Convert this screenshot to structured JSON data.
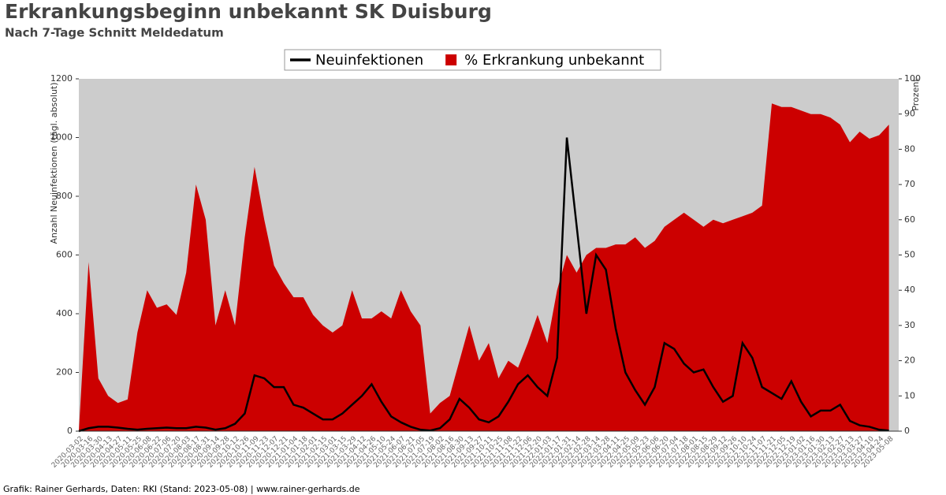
{
  "chart_data": {
    "type": "line_area",
    "title": "Erkrankungsbeginn unbekannt SK Duisburg",
    "subtitle": "Nach 7-Tage Schnitt Meldedatum",
    "ylabel": "Anzahl Neuinfektionen (tägl. absolut)",
    "y2label": "Prozent",
    "footer": "Grafik: Rainer Gerhards, Daten: RKI (Stand: 2023-05-08) | www.rainer-gerhards.de",
    "categories": [
      "2020-03-02",
      "2020-03-16",
      "2020-03-30",
      "2020-04-13",
      "2020-04-27",
      "2020-05-11",
      "2020-05-25",
      "2020-06-08",
      "2020-06-22",
      "2020-07-06",
      "2020-07-20",
      "2020-08-03",
      "2020-08-17",
      "2020-08-31",
      "2020-09-14",
      "2020-09-28",
      "2020-10-12",
      "2020-10-26",
      "2020-11-09",
      "2020-11-23",
      "2020-12-07",
      "2020-12-21",
      "2021-01-04",
      "2021-01-18",
      "2021-02-01",
      "2021-02-15",
      "2021-03-01",
      "2021-03-15",
      "2021-03-29",
      "2021-04-12",
      "2021-04-26",
      "2021-05-10",
      "2021-05-24",
      "2021-06-07",
      "2021-06-21",
      "2021-07-05",
      "2021-07-19",
      "2021-08-02",
      "2021-08-16",
      "2021-08-30",
      "2021-09-13",
      "2021-09-27",
      "2021-10-11",
      "2021-10-25",
      "2021-11-08",
      "2021-11-22",
      "2021-12-06",
      "2021-12-20",
      "2022-01-03",
      "2022-01-17",
      "2022-01-31",
      "2022-02-14",
      "2022-02-28",
      "2022-03-14",
      "2022-03-28",
      "2022-04-11",
      "2022-04-25",
      "2022-05-09",
      "2022-05-23",
      "2022-06-06",
      "2022-06-20",
      "2022-07-04",
      "2022-07-18",
      "2022-08-01",
      "2022-08-15",
      "2022-08-29",
      "2022-09-12",
      "2022-09-26",
      "2022-10-10",
      "2022-10-24",
      "2022-11-07",
      "2022-11-21",
      "2022-12-05",
      "2022-12-19",
      "2023-01-02",
      "2023-01-16",
      "2023-01-30",
      "2023-02-13",
      "2023-02-27",
      "2023-03-13",
      "2023-03-27",
      "2023-04-10",
      "2023-04-24",
      "2023-05-08"
    ],
    "series": [
      {
        "name": "Neuinfektionen",
        "color": "#000000",
        "kind": "line",
        "values": [
          0,
          10,
          15,
          15,
          12,
          8,
          5,
          8,
          10,
          12,
          10,
          10,
          15,
          12,
          5,
          10,
          25,
          60,
          190,
          180,
          150,
          150,
          90,
          80,
          60,
          40,
          40,
          60,
          90,
          120,
          160,
          100,
          50,
          30,
          15,
          5,
          2,
          10,
          40,
          110,
          80,
          40,
          30,
          50,
          100,
          160,
          190,
          150,
          120,
          250,
          1000,
          700,
          400,
          600,
          550,
          350,
          200,
          140,
          90,
          150,
          300,
          280,
          230,
          200,
          210,
          150,
          100,
          120,
          300,
          250,
          150,
          130,
          110,
          170,
          100,
          50,
          70,
          70,
          90,
          35,
          20,
          15,
          5,
          2
        ]
      },
      {
        "name": "% Erkrankung unbekannt",
        "color": "#cc0000",
        "kind": "area",
        "axis": "y2",
        "values": [
          0,
          48,
          15,
          10,
          8,
          9,
          28,
          40,
          35,
          36,
          33,
          45,
          70,
          60,
          30,
          40,
          30,
          55,
          75,
          60,
          47,
          42,
          38,
          38,
          33,
          30,
          28,
          30,
          40,
          32,
          32,
          34,
          32,
          40,
          34,
          30,
          5,
          8,
          10,
          20,
          30,
          20,
          25,
          15,
          20,
          18,
          25,
          33,
          25,
          40,
          50,
          45,
          50,
          52,
          52,
          53,
          53,
          55,
          52,
          54,
          58,
          60,
          62,
          60,
          58,
          60,
          59,
          60,
          61,
          62,
          64,
          93,
          92,
          92,
          91,
          90,
          90,
          89,
          87,
          82,
          85,
          83,
          84,
          87
        ]
      }
    ],
    "ylim": [
      0,
      1200
    ],
    "yticks": [
      0,
      200,
      400,
      600,
      800,
      1000,
      1200
    ],
    "y2lim": [
      0,
      100
    ],
    "y2ticks": [
      0,
      10,
      20,
      30,
      40,
      50,
      60,
      70,
      80,
      90,
      100
    ],
    "background": "#cccccc"
  }
}
